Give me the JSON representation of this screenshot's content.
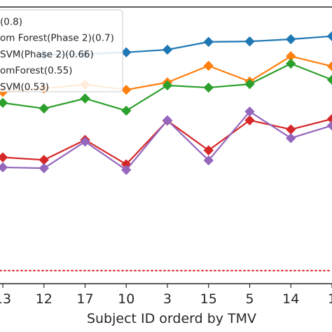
{
  "chart_data": {
    "type": "line",
    "xlabel": "Subject ID orderd by TMV",
    "ylabel": "",
    "title": "",
    "categories": [
      "13",
      "12",
      "17",
      "10",
      "3",
      "15",
      "5",
      "14",
      "1"
    ],
    "ylim": [
      0.3,
      0.935
    ],
    "grid": false,
    "legend_position": "top-left",
    "baseline": {
      "value": 0.33,
      "style": "dotted",
      "color": "#d62728"
    },
    "series": [
      {
        "name": "(0.8)",
        "color": "#1f77b4",
        "marker": "diamond",
        "values": [
          null,
          0.825,
          0.827,
          0.831,
          0.837,
          0.855,
          0.856,
          0.861,
          0.868
        ]
      },
      {
        "name": "om Forest(Phase 2)(0.7)",
        "color": "#ff7f0e",
        "marker": "diamond",
        "values": [
          0.74,
          0.748,
          0.757,
          0.745,
          0.762,
          0.8,
          0.764,
          0.822,
          0.799
        ]
      },
      {
        "name": "SVM(Phase 2)(0.66)",
        "color": "#2ca02c",
        "marker": "diamond",
        "values": [
          0.715,
          0.702,
          0.725,
          0.697,
          0.755,
          0.75,
          0.758,
          0.805,
          0.768
        ]
      },
      {
        "name": "omForest(0.55)",
        "color": "#d62728",
        "marker": "diamond",
        "values": [
          0.59,
          0.584,
          0.63,
          0.574,
          0.674,
          0.606,
          0.675,
          0.654,
          0.678
        ]
      },
      {
        "name": "SVM(0.53)",
        "color": "#9467bd",
        "marker": "diamond",
        "values": [
          0.567,
          0.565,
          0.626,
          0.561,
          0.675,
          0.583,
          0.695,
          0.634,
          0.663
        ]
      }
    ]
  }
}
